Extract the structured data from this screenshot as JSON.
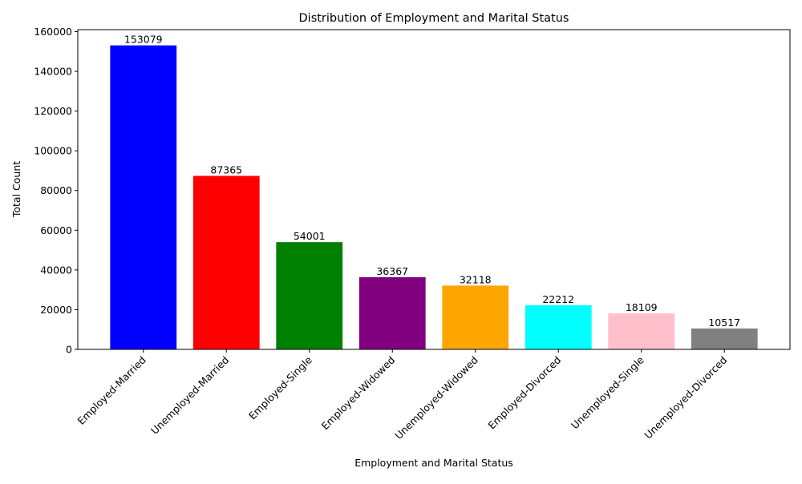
{
  "chart_data": {
    "type": "bar",
    "title": "Distribution of Employment and Marital Status",
    "xlabel": "Employment and Marital Status",
    "ylabel": "Total Count",
    "ylim": [
      0,
      161000
    ],
    "yticks": [
      0,
      20000,
      40000,
      60000,
      80000,
      100000,
      120000,
      140000,
      160000
    ],
    "grid": false,
    "legend": "none",
    "categories": [
      "Employed-Married",
      "Unemployed-Married",
      "Employed-Single",
      "Employed-Widowed",
      "Unemployed-Widowed",
      "Employed-Divorced",
      "Unemployed-Single",
      "Unemployed-Divorced"
    ],
    "values": [
      153079,
      87365,
      54001,
      36367,
      32118,
      22212,
      18109,
      10517
    ],
    "colors": [
      "#0000ff",
      "#ff0000",
      "#008000",
      "#800080",
      "#ffa500",
      "#00ffff",
      "#ffc0cb",
      "#808080"
    ]
  }
}
